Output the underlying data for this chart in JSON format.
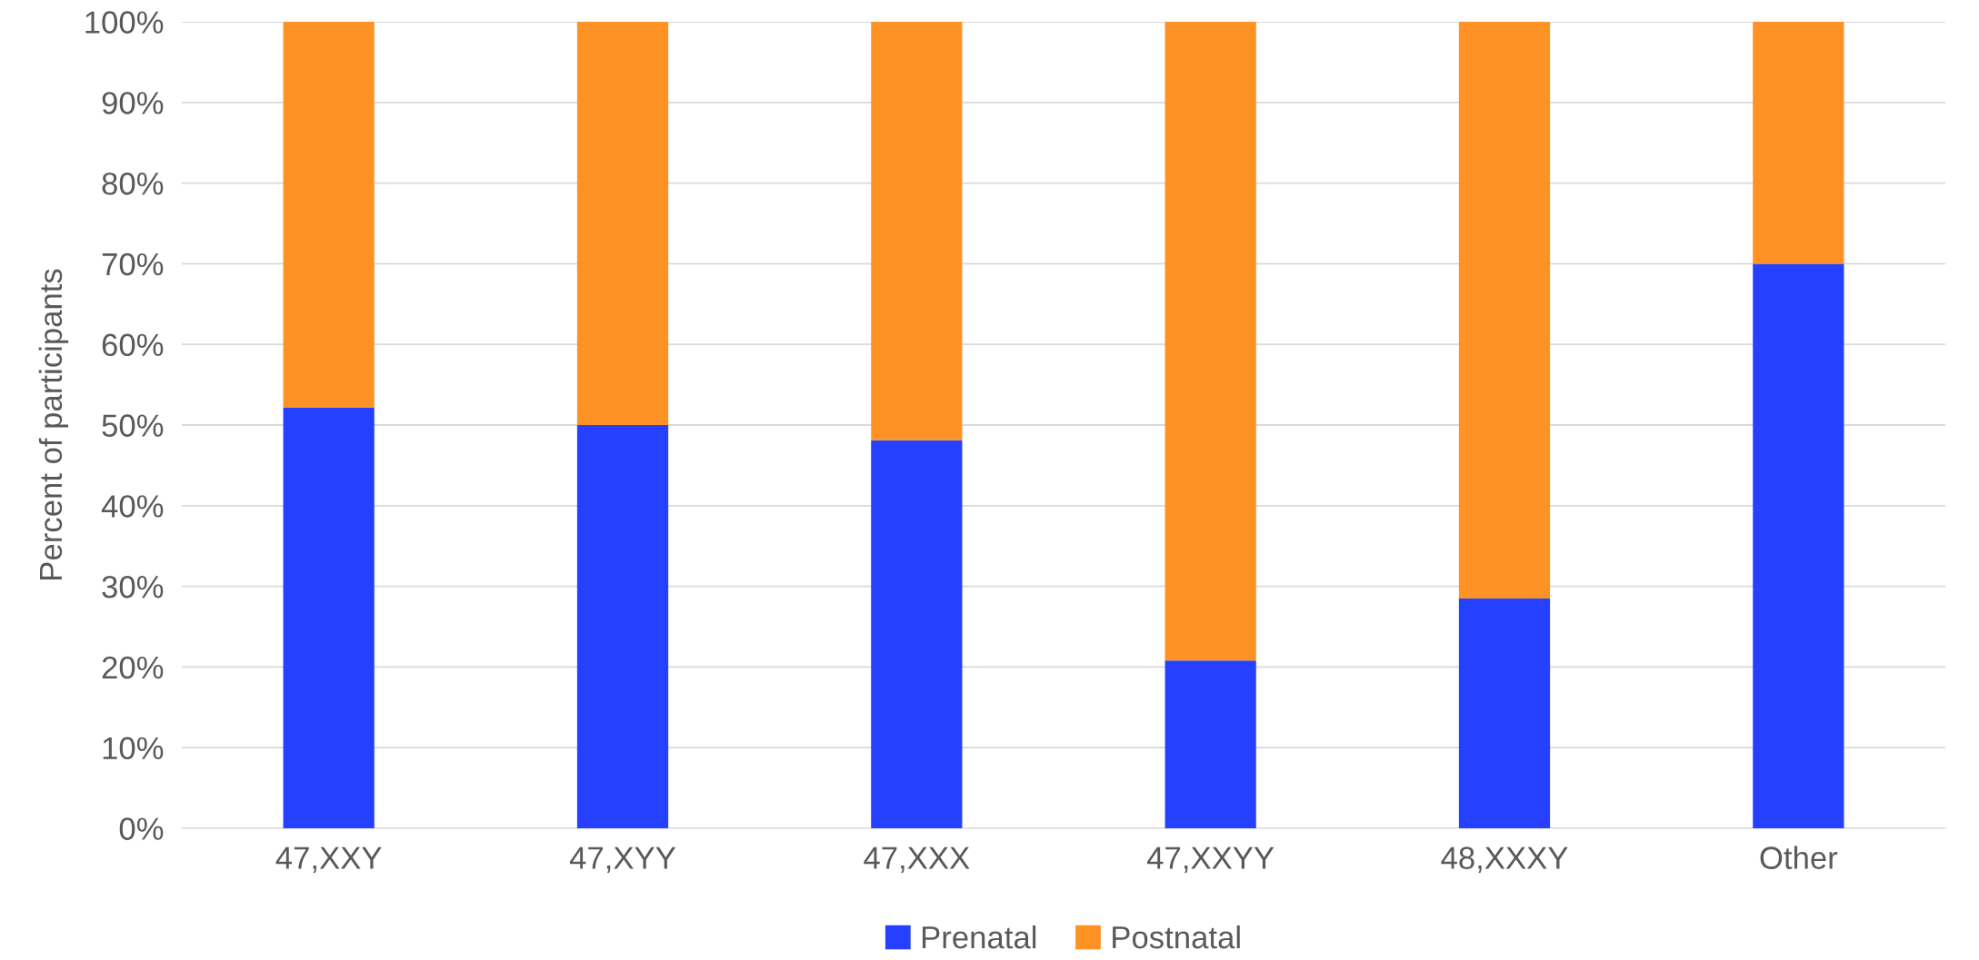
{
  "chart_data": {
    "type": "bar",
    "stacked": true,
    "ylabel": "Percent of participants",
    "categories": [
      "47,XXY",
      "47,XYY",
      "47,XXX",
      "47,XXYY",
      "48,XXXY",
      "Other"
    ],
    "series": [
      {
        "name": "Prenatal",
        "color": "#2541ff",
        "values": [
          52.2,
          50,
          48.1,
          20.8,
          28.5,
          70
        ]
      },
      {
        "name": "Postnatal",
        "color": "#ff9224",
        "values": [
          47.8,
          50,
          51.9,
          79.2,
          71.5,
          30
        ]
      }
    ],
    "ylim": [
      0,
      100
    ],
    "yticks": [
      {
        "value": 0,
        "label": "0%"
      },
      {
        "value": 10,
        "label": "10%"
      },
      {
        "value": 20,
        "label": "20%"
      },
      {
        "value": 30,
        "label": "30%"
      },
      {
        "value": 40,
        "label": "40%"
      },
      {
        "value": 50,
        "label": "50%"
      },
      {
        "value": 60,
        "label": "60%"
      },
      {
        "value": 70,
        "label": "70%"
      },
      {
        "value": 80,
        "label": "80%"
      },
      {
        "value": 90,
        "label": "90%"
      },
      {
        "value": 100,
        "label": "100%"
      }
    ],
    "grid": "y",
    "legend": "bottom"
  }
}
